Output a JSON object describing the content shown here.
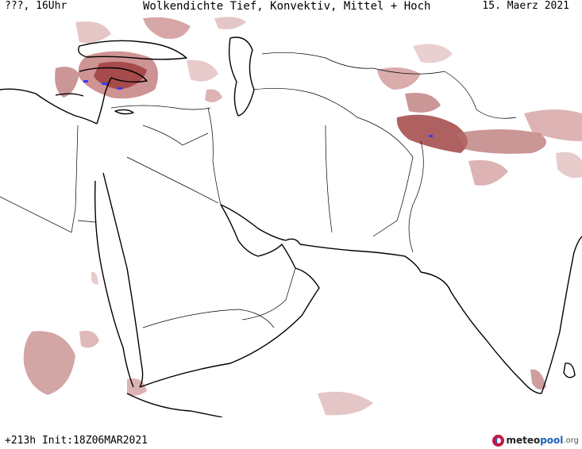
{
  "header": {
    "left": "???, 16Uhr",
    "center": "Wolkendichte  Tief, Konvektiv, Mittel + Hoch",
    "right": "15. Maerz 2021"
  },
  "footer": {
    "run": "+213h Init:18Z06MAR2021"
  },
  "logo": {
    "part_a": "meteo",
    "part_b": "pool",
    "part_c": ".org"
  },
  "colors": {
    "cloud_light": "#e8c4c4",
    "cloud_mid": "#c68080",
    "cloud_dark": "#9b3a3a",
    "precip": "#3a3aff",
    "coast": "#000000",
    "border": "#000000"
  }
}
